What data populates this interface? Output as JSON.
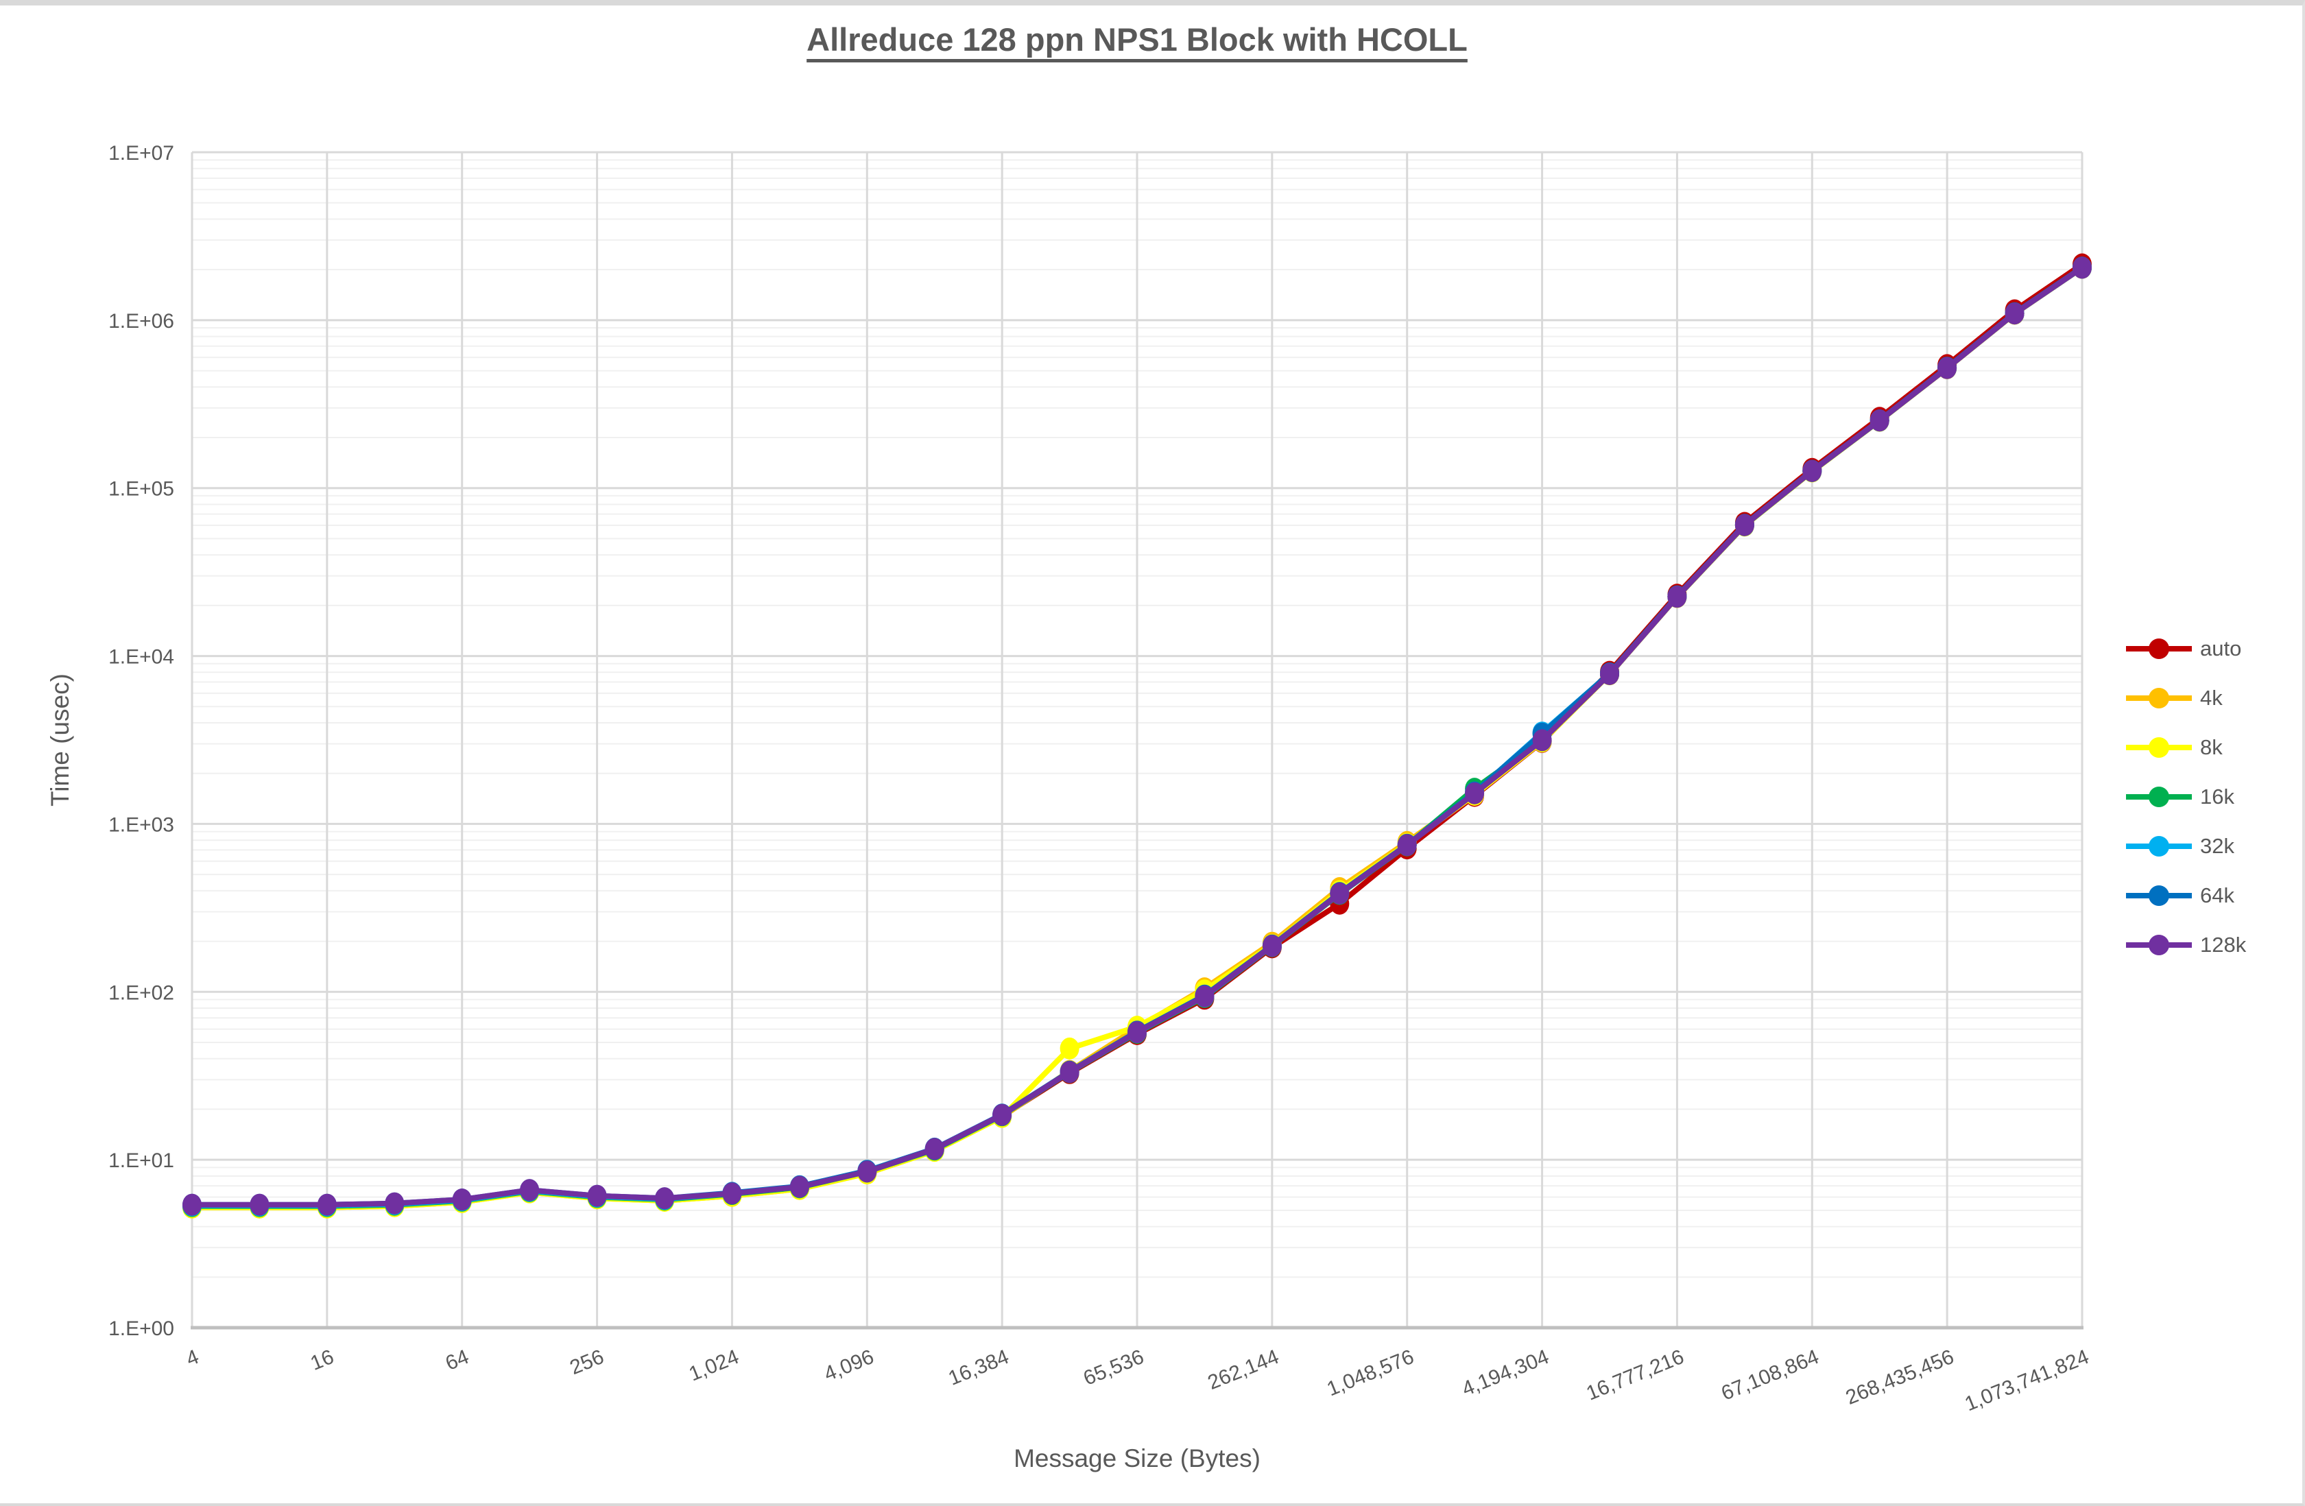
{
  "title": "Allreduce 128 ppn NPS1 Block with HCOLL",
  "axes": {
    "x_title": "Message Size (Bytes)",
    "y_title": "Time (usec)",
    "y_tick_labels": [
      "1.E+00",
      "1.E+01",
      "1.E+02",
      "1.E+03",
      "1.E+04",
      "1.E+05",
      "1.E+06",
      "1.E+07"
    ],
    "x_tick_labels": [
      "4",
      "16",
      "64",
      "256",
      "1,024",
      "4,096",
      "16,384",
      "65,536",
      "262,144",
      "1,048,576",
      "4,194,304",
      "16,777,216",
      "67,108,864",
      "268,435,456",
      "1,073,741,824"
    ]
  },
  "style_colors": {
    "text": "#595959",
    "major_gridline": "#D9D9D9",
    "minor_gridline": "#F0F0F0",
    "axis_line": "#BFBFBF"
  },
  "chart_data": {
    "type": "line",
    "title": "Allreduce 128 ppn NPS1 Block with HCOLL",
    "xlabel": "Message Size (Bytes)",
    "ylabel": "Time (usec)",
    "x_scale": "log2",
    "y_scale": "log10",
    "ylim": [
      1,
      10000000
    ],
    "xlim": [
      4,
      1073741824
    ],
    "grid": "major+minor-log",
    "legend_position": "right",
    "x": [
      4,
      8,
      16,
      32,
      64,
      128,
      256,
      512,
      1024,
      2048,
      4096,
      8192,
      16384,
      32768,
      65536,
      131072,
      262144,
      524288,
      1048576,
      2097152,
      4194304,
      8388608,
      16777216,
      33554432,
      67108864,
      134217728,
      268435456,
      536870912,
      1073741824
    ],
    "series": [
      {
        "name": "auto",
        "color": "#C00000",
        "values": [
          5.3,
          5.3,
          5.3,
          5.4,
          5.7,
          6.5,
          6.0,
          5.8,
          6.2,
          6.8,
          8.4,
          11.4,
          18.2,
          32.8,
          56,
          91,
          184,
          335,
          715,
          1470,
          3080,
          8050,
          23200,
          62000,
          130000,
          262000,
          540000,
          1145000,
          2150000
        ]
      },
      {
        "name": "4k",
        "color": "#FFC000",
        "values": [
          5.2,
          5.2,
          5.2,
          5.3,
          5.6,
          6.4,
          5.9,
          5.7,
          6.1,
          6.7,
          8.3,
          11.3,
          18.0,
          33.8,
          61,
          105,
          196,
          415,
          780,
          1500,
          3120,
          7800,
          22500,
          60000,
          126000,
          252000,
          518000,
          1095000,
          2050000
        ]
      },
      {
        "name": "8k",
        "color": "#FFFF00",
        "values": [
          5.2,
          5.2,
          5.2,
          5.3,
          5.6,
          6.4,
          5.9,
          5.7,
          6.1,
          6.7,
          8.3,
          11.3,
          18.0,
          46,
          62,
          102,
          190,
          398,
          760,
          1490,
          3100,
          7780,
          22450,
          59800,
          125600,
          251600,
          517000,
          1092000,
          2048000
        ]
      },
      {
        "name": "16k",
        "color": "#00B050",
        "values": [
          5.3,
          5.3,
          5.3,
          5.4,
          5.7,
          6.5,
          6.0,
          5.8,
          6.25,
          6.85,
          8.5,
          11.5,
          18.4,
          33.2,
          57,
          93,
          187,
          383,
          745,
          1620,
          3150,
          7820,
          22550,
          60100,
          126200,
          252400,
          519000,
          1096000,
          2052000
        ]
      },
      {
        "name": "32k",
        "color": "#00B0F0",
        "values": [
          5.35,
          5.35,
          5.35,
          5.45,
          5.75,
          6.55,
          6.05,
          5.85,
          6.3,
          6.9,
          8.55,
          11.6,
          18.5,
          33.4,
          57.5,
          94,
          188,
          386,
          750,
          1530,
          3500,
          7850,
          22600,
          60300,
          126500,
          252800,
          520000,
          1098000,
          2055000
        ]
      },
      {
        "name": "64k",
        "color": "#0070C0",
        "values": [
          5.4,
          5.4,
          5.4,
          5.5,
          5.8,
          6.6,
          6.1,
          5.9,
          6.35,
          6.95,
          8.6,
          11.65,
          18.6,
          33.5,
          58,
          95,
          189,
          388,
          752,
          1540,
          3450,
          7870,
          22650,
          60400,
          126700,
          253000,
          521000,
          1100000,
          2058000
        ]
      },
      {
        "name": "128k",
        "color": "#7030A0",
        "values": [
          5.4,
          5.4,
          5.4,
          5.5,
          5.8,
          6.6,
          6.1,
          5.9,
          6.3,
          6.9,
          8.5,
          11.6,
          18.5,
          33.3,
          57.5,
          94,
          188,
          385,
          748,
          1520,
          3150,
          7800,
          22500,
          60200,
          126300,
          252500,
          518000,
          1095000,
          2050000
        ]
      }
    ]
  }
}
